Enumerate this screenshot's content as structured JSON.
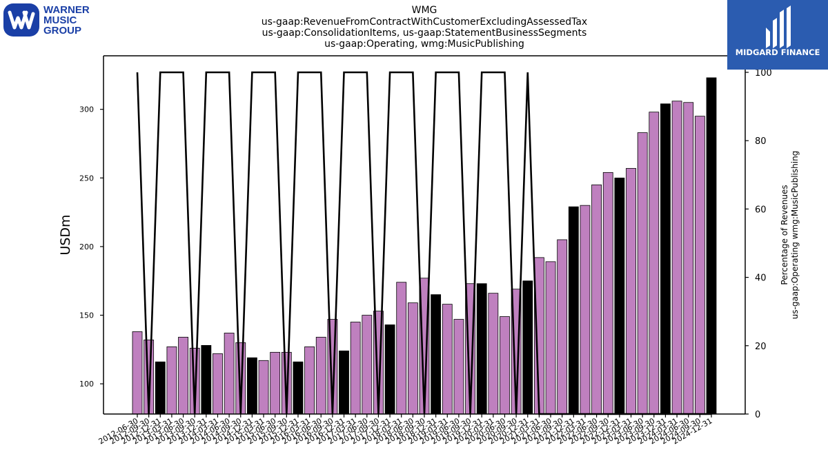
{
  "logos": {
    "left_lines": [
      "WARNER",
      "MUSIC",
      "GROUP"
    ],
    "right_text": "MIDGARD FINANCE"
  },
  "colors": {
    "bar_primary": "#bf80bf",
    "bar_secondary": "#000000",
    "line": "#000000",
    "midgard_bg": "#2b5cb0",
    "wmg_blue": "#1a3fa6"
  },
  "chart_data": {
    "type": "bar",
    "title_lines": [
      "WMG",
      "us-gaap:RevenueFromContractWithCustomerExcludingAssessedTax",
      "us-gaap:ConsolidationItems, us-gaap:StatementBusinessSegments",
      "us-gaap:Operating, wmg:MusicPublishing"
    ],
    "ylabel": "USDm",
    "y2label_lines": [
      "Percentage of Revenues",
      "us-gaap:Operating wmg:MusicPublishing"
    ],
    "ylim": [
      78,
      339
    ],
    "y2lim": [
      0,
      100
    ],
    "yticks": [
      100,
      150,
      200,
      250,
      300
    ],
    "y2ticks": [
      0,
      20,
      40,
      60,
      80,
      100
    ],
    "categories": [
      "2012-06-30",
      "2012-09-30",
      "2012-12-31",
      "2013-03-31",
      "2013-06-30",
      "2013-09-30",
      "2013-12-31",
      "2014-03-31",
      "2014-06-30",
      "2014-09-30",
      "2014-12-31",
      "2015-03-31",
      "2015-06-30",
      "2015-09-30",
      "2015-12-31",
      "2016-03-31",
      "2016-06-30",
      "2016-09-30",
      "2016-12-31",
      "2017-03-31",
      "2017-06-30",
      "2017-09-30",
      "2017-12-31",
      "2018-03-31",
      "2018-06-30",
      "2018-09-30",
      "2018-12-31",
      "2019-03-31",
      "2019-06-30",
      "2019-09-30",
      "2019-12-31",
      "2020-03-31",
      "2020-06-30",
      "2020-09-30",
      "2020-12-31",
      "2021-03-31",
      "2021-06-30",
      "2021-09-30",
      "2021-12-31",
      "2022-03-31",
      "2022-06-30",
      "2022-09-30",
      "2022-12-31",
      "2023-03-31",
      "2023-06-30",
      "2023-09-30",
      "2023-12-31",
      "2024-03-31",
      "2024-06-30",
      "2024-09-30",
      "2024-12-31"
    ],
    "values": [
      138,
      132,
      116,
      127,
      134,
      126,
      128,
      122,
      137,
      130,
      119,
      117,
      123,
      123,
      116,
      127,
      134,
      147,
      124,
      145,
      150,
      153,
      143,
      174,
      159,
      177,
      165,
      158,
      147,
      173,
      173,
      166,
      149,
      169,
      175,
      192,
      189,
      205,
      229,
      230,
      245,
      254,
      250,
      257,
      283,
      298,
      304,
      306,
      305,
      295,
      323
    ],
    "bar_color_key": [
      "p",
      "p",
      "s",
      "p",
      "p",
      "p",
      "s",
      "p",
      "p",
      "p",
      "s",
      "p",
      "p",
      "p",
      "s",
      "p",
      "p",
      "p",
      "s",
      "p",
      "p",
      "p",
      "s",
      "p",
      "p",
      "p",
      "s",
      "p",
      "p",
      "p",
      "s",
      "p",
      "p",
      "p",
      "s",
      "p",
      "p",
      "p",
      "s",
      "p",
      "p",
      "p",
      "s",
      "p",
      "p",
      "p",
      "s",
      "p",
      "p",
      "p",
      "s"
    ],
    "line_percent": [
      100,
      0,
      100,
      100,
      100,
      0,
      100,
      100,
      100,
      0,
      100,
      100,
      100,
      0,
      100,
      100,
      100,
      0,
      100,
      100,
      100,
      0,
      100,
      100,
      100,
      0,
      100,
      100,
      100,
      0,
      100,
      100,
      100,
      0,
      100,
      0,
      0,
      0,
      0,
      0,
      0,
      0,
      0,
      0,
      0,
      0,
      0,
      0,
      0,
      0,
      0
    ]
  }
}
